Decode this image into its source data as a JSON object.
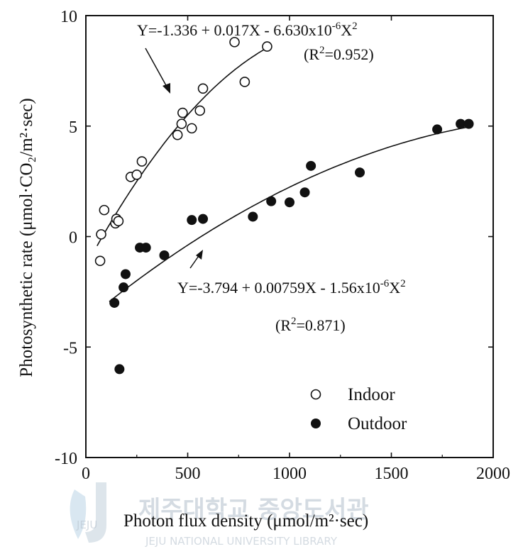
{
  "chart_data": {
    "type": "scatter",
    "xlabel": "Photon flux density (μmol/m²·sec)",
    "ylabel": "Photosynthetic rate (μmol·CO₂/m²·sec)",
    "xlim": [
      0,
      2000
    ],
    "ylim": [
      -10,
      10
    ],
    "x_ticks": [
      "0",
      "500",
      "1000",
      "1500",
      "2000"
    ],
    "y_ticks": [
      "10",
      "5",
      "0",
      "-5",
      "-10"
    ],
    "grid": false,
    "legend_position": "bottom-right",
    "series": [
      {
        "name": "Indoor",
        "marker": "open-circle",
        "points": [
          {
            "x": 70,
            "y": -1.1
          },
          {
            "x": 75,
            "y": 0.1
          },
          {
            "x": 90,
            "y": 1.2
          },
          {
            "x": 145,
            "y": 0.6
          },
          {
            "x": 150,
            "y": 0.8
          },
          {
            "x": 160,
            "y": 0.7
          },
          {
            "x": 220,
            "y": 2.7
          },
          {
            "x": 250,
            "y": 2.8
          },
          {
            "x": 275,
            "y": 3.4
          },
          {
            "x": 450,
            "y": 4.6
          },
          {
            "x": 470,
            "y": 5.1
          },
          {
            "x": 475,
            "y": 5.6
          },
          {
            "x": 520,
            "y": 4.9
          },
          {
            "x": 560,
            "y": 5.7
          },
          {
            "x": 575,
            "y": 6.7
          },
          {
            "x": 730,
            "y": 8.8
          },
          {
            "x": 780,
            "y": 7.0
          },
          {
            "x": 890,
            "y": 8.6
          }
        ],
        "fit": {
          "a": -1.336,
          "b": 0.017,
          "c": -6.63e-06,
          "x_range": [
            55,
            890
          ]
        },
        "equation": "Y=-1.336 + 0.017X - 6.630x10",
        "equation_exp": "-6",
        "equation_tail": "X",
        "equation_tail_exp": "2",
        "r2_prefix": "(R",
        "r2_exp": "2",
        "r2_value": "=0.952)"
      },
      {
        "name": "Outdoor",
        "marker": "filled-circle",
        "points": [
          {
            "x": 140,
            "y": -3.0
          },
          {
            "x": 165,
            "y": -6.0
          },
          {
            "x": 185,
            "y": -2.3
          },
          {
            "x": 195,
            "y": -1.7
          },
          {
            "x": 265,
            "y": -0.5
          },
          {
            "x": 295,
            "y": -0.5
          },
          {
            "x": 385,
            "y": -0.85
          },
          {
            "x": 520,
            "y": 0.75
          },
          {
            "x": 575,
            "y": 0.8
          },
          {
            "x": 820,
            "y": 0.9
          },
          {
            "x": 910,
            "y": 1.6
          },
          {
            "x": 1000,
            "y": 1.55
          },
          {
            "x": 1075,
            "y": 2.0
          },
          {
            "x": 1105,
            "y": 3.2
          },
          {
            "x": 1345,
            "y": 2.9
          },
          {
            "x": 1725,
            "y": 4.85
          },
          {
            "x": 1840,
            "y": 5.1
          },
          {
            "x": 1880,
            "y": 5.1
          }
        ],
        "fit": {
          "a": -3.794,
          "b": 0.00759,
          "c": -1.56e-06,
          "x_range": [
            115,
            1880
          ]
        },
        "equation": "Y=-3.794 + 0.00759X - 1.56x10",
        "equation_exp": "-6",
        "equation_tail": "X",
        "equation_tail_exp": "2",
        "r2_prefix": "(R",
        "r2_exp": "2",
        "r2_value": "=0.871)"
      }
    ]
  },
  "watermark": {
    "korean": "제주대학교 중앙도서관",
    "english": "JEJU NATIONAL UNIVERSITY LIBRARY",
    "logo": "JEJU"
  }
}
